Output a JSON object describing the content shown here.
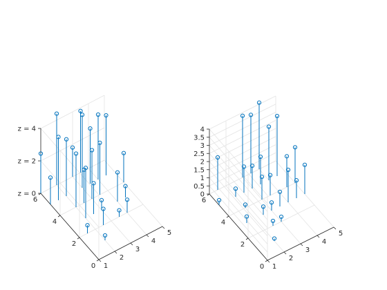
{
  "figure": {
    "background": "#ffffff",
    "color": "#0072bd"
  },
  "chart_data": [
    {
      "type": "stem3",
      "title": "",
      "xlabel": "",
      "ylabel": "",
      "zlabel": "",
      "xlim": [
        1,
        5
      ],
      "ylim": [
        0,
        6
      ],
      "zlim": [
        0,
        4
      ],
      "x_ticks": [
        "1",
        "2",
        "3",
        "4",
        "5"
      ],
      "y_ticks": [
        "0",
        "2",
        "4",
        "6"
      ],
      "z_ticks": [
        "z = 0",
        "z = 2",
        "z = 4"
      ],
      "grid": true,
      "color": "#0072bd",
      "points": [
        {
          "x": 1,
          "y": 5,
          "z": 1.65
        },
        {
          "x": 1,
          "y": 6,
          "z": 2.45
        },
        {
          "x": 1.5,
          "y": 5,
          "z": 3.9
        },
        {
          "x": 1.5,
          "y": 2,
          "z": 0.5
        },
        {
          "x": 2,
          "y": 5,
          "z": 3.5
        },
        {
          "x": 2,
          "y": 6,
          "z": 4.4
        },
        {
          "x": 2,
          "y": 4,
          "z": 3.3
        },
        {
          "x": 2,
          "y": 3,
          "z": 3.1
        },
        {
          "x": 2,
          "y": 1,
          "z": 0.3
        },
        {
          "x": 2.5,
          "y": 4,
          "z": 2.05
        },
        {
          "x": 2.5,
          "y": 3,
          "z": 1.9
        },
        {
          "x": 2.5,
          "y": 2,
          "z": 1.0
        },
        {
          "x": 3,
          "y": 5,
          "z": 4.5
        },
        {
          "x": 3,
          "y": 4,
          "z": 3.0
        },
        {
          "x": 3,
          "y": 3,
          "z": 0.6
        },
        {
          "x": 3,
          "y": 6,
          "z": 1.8
        },
        {
          "x": 3.5,
          "y": 5,
          "z": 3.4
        },
        {
          "x": 3.5,
          "y": 4,
          "z": 3.2
        },
        {
          "x": 3.5,
          "y": 6,
          "z": 3.8
        },
        {
          "x": 3.5,
          "y": 2,
          "z": 0.4
        },
        {
          "x": 4,
          "y": 5,
          "z": 4.0
        },
        {
          "x": 4,
          "y": 3,
          "z": 1.8
        },
        {
          "x": 4,
          "y": 2,
          "z": 0.8
        },
        {
          "x": 4.5,
          "y": 5,
          "z": 3.7
        },
        {
          "x": 4.5,
          "y": 3,
          "z": 0.7
        },
        {
          "x": 5,
          "y": 4,
          "z": 1.8
        }
      ]
    },
    {
      "type": "stem3",
      "title": "",
      "xlabel": "",
      "ylabel": "",
      "zlabel": "",
      "xlim": [
        1,
        5
      ],
      "ylim": [
        0,
        6
      ],
      "zlim": [
        0,
        4
      ],
      "x_ticks": [
        "1",
        "2",
        "3",
        "4",
        "5"
      ],
      "y_ticks": [
        "0",
        "2",
        "4",
        "6"
      ],
      "z_ticks": [
        "0",
        "0.5",
        "1",
        "1.5",
        "2",
        "2.5",
        "3",
        "3.5",
        "4"
      ],
      "grid": true,
      "color": "#0072bd",
      "points": [
        {
          "x": 1,
          "y": 5,
          "z": 0.3
        },
        {
          "x": 1.5,
          "y": 6,
          "z": 2.0
        },
        {
          "x": 1.5,
          "y": 3,
          "z": 0.4
        },
        {
          "x": 2,
          "y": 5,
          "z": 0.5
        },
        {
          "x": 2,
          "y": 4,
          "z": 0.2
        },
        {
          "x": 2,
          "y": 1,
          "z": 0.15
        },
        {
          "x": 2.5,
          "y": 5,
          "z": 1.6
        },
        {
          "x": 2.5,
          "y": 3,
          "z": 0.5
        },
        {
          "x": 2.5,
          "y": 2,
          "z": 0.3
        },
        {
          "x": 3,
          "y": 6,
          "z": 3.8
        },
        {
          "x": 3,
          "y": 5,
          "z": 1.4
        },
        {
          "x": 3,
          "y": 4,
          "z": 1.4
        },
        {
          "x": 3,
          "y": 3,
          "z": 0.5
        },
        {
          "x": 3,
          "y": 2,
          "z": 0.3
        },
        {
          "x": 3.5,
          "y": 6,
          "z": 3.6
        },
        {
          "x": 3.5,
          "y": 5,
          "z": 1.7
        },
        {
          "x": 3.5,
          "y": 4,
          "z": 1.25
        },
        {
          "x": 3.5,
          "y": 3,
          "z": 0.9
        },
        {
          "x": 4,
          "y": 6,
          "z": 4.1
        },
        {
          "x": 4,
          "y": 5,
          "z": 3.3
        },
        {
          "x": 4,
          "y": 3,
          "z": 2.0
        },
        {
          "x": 4.5,
          "y": 5,
          "z": 3.7
        },
        {
          "x": 4.5,
          "y": 4,
          "z": 1.9
        },
        {
          "x": 4.5,
          "y": 3,
          "z": 1.1
        },
        {
          "x": 5,
          "y": 3,
          "z": 1.8
        },
        {
          "x": 5,
          "y": 4,
          "z": 2.2
        }
      ]
    }
  ]
}
